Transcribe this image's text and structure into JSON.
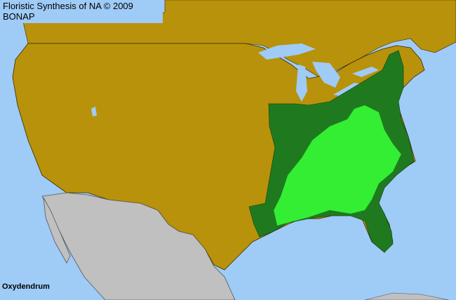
{
  "header": {
    "title": "Floristic Synthesis of NA © 2009 BONAP"
  },
  "map": {
    "taxon": "Oxydendrum",
    "colors": {
      "water": "#9fcbf7",
      "land_absent": "#b8920a",
      "mexico": "#c0c0c0",
      "state_present": "#1f7a1f",
      "county_present": "#33ee33",
      "borders": "#3a2a00"
    }
  }
}
